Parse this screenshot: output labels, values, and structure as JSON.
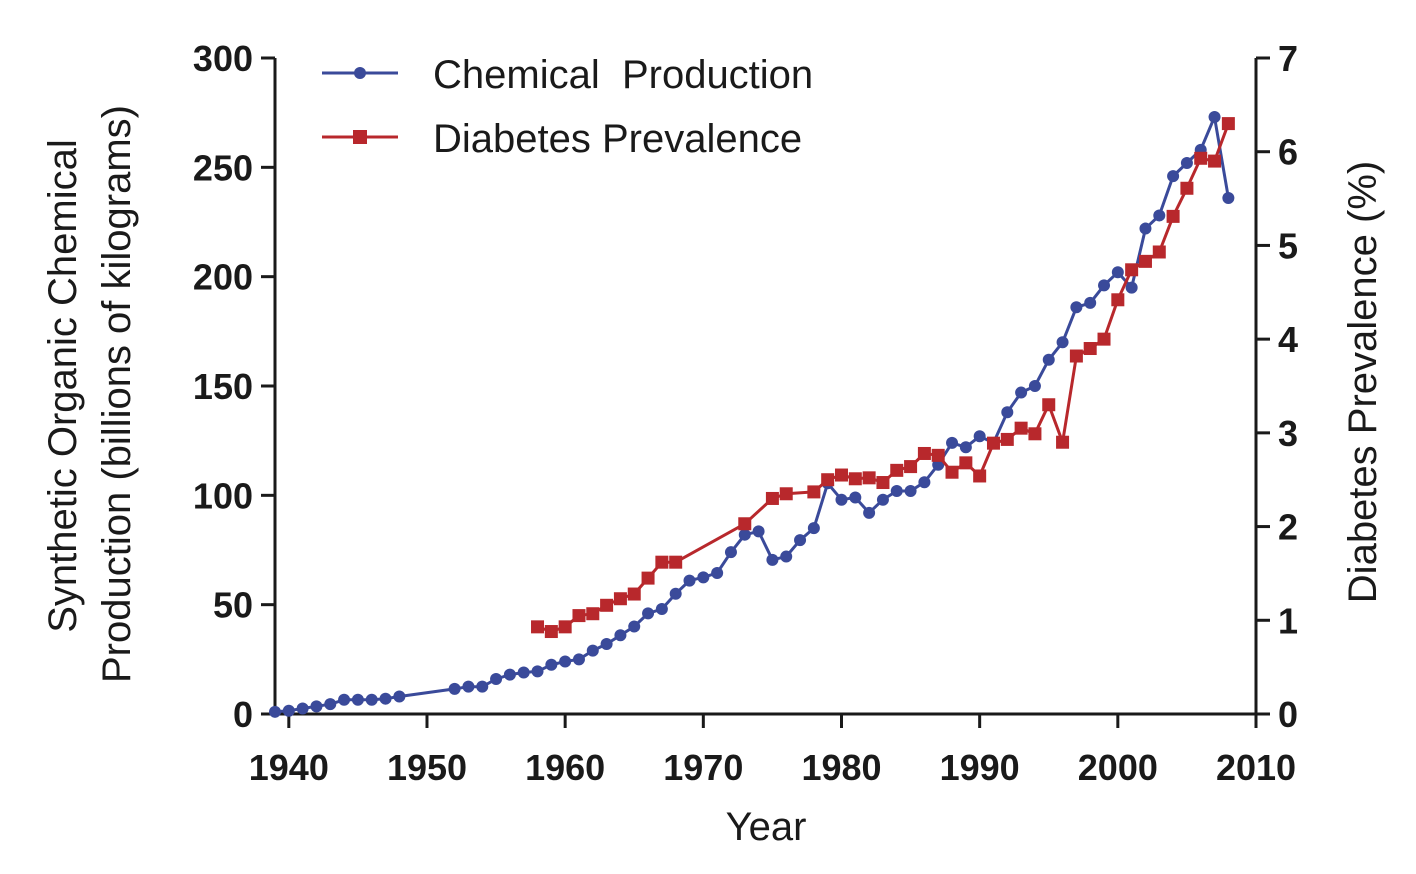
{
  "chart_data": {
    "type": "line",
    "xlabel": "Year",
    "ylabel_left_line1": "Synthetic  Organic  Chemical",
    "ylabel_left_line2": "Production (billions of kilograms)",
    "ylabel_right": "Diabetes  Prevalence  (%)",
    "xlim": [
      1939,
      2010
    ],
    "ylim_left": [
      0,
      300
    ],
    "ylim_right": [
      0,
      7
    ],
    "x_ticks": [
      1940,
      1950,
      1960,
      1970,
      1980,
      1990,
      2000,
      2010
    ],
    "y_ticks_left": [
      0,
      50,
      100,
      150,
      200,
      250,
      300
    ],
    "y_ticks_right": [
      0,
      1,
      2,
      3,
      4,
      5,
      6,
      7
    ],
    "grid": false,
    "legend_position": "top-left",
    "series": [
      {
        "name": "Chemical  Production",
        "axis": "left",
        "marker": "circle",
        "color": "#3a4a9a",
        "x": [
          1939,
          1940,
          1941,
          1942,
          1943,
          1944,
          1945,
          1946,
          1947,
          1948,
          1952,
          1953,
          1954,
          1955,
          1956,
          1957,
          1958,
          1959,
          1960,
          1961,
          1962,
          1963,
          1964,
          1965,
          1966,
          1967,
          1968,
          1969,
          1970,
          1971,
          1972,
          1973,
          1974,
          1975,
          1976,
          1977,
          1978,
          1979,
          1980,
          1981,
          1982,
          1983,
          1984,
          1985,
          1986,
          1987,
          1988,
          1989,
          1990,
          1991,
          1992,
          1993,
          1994,
          1995,
          1996,
          1997,
          1998,
          1999,
          2000,
          2001,
          2002,
          2003,
          2004,
          2005,
          2006,
          2007,
          2008
        ],
        "y": [
          1,
          1.5,
          2.5,
          3.5,
          4.5,
          6.5,
          6.5,
          6.5,
          7,
          8,
          11.5,
          12.5,
          12.5,
          16,
          18,
          19,
          19.5,
          22.5,
          24,
          25,
          29,
          32,
          36,
          40,
          46,
          48,
          55,
          61,
          62.5,
          64.5,
          74,
          82,
          83.5,
          70.5,
          72,
          79.5,
          85,
          105.5,
          98,
          99,
          92,
          98,
          102,
          102,
          106,
          114,
          124,
          122,
          127,
          124,
          138,
          147,
          150,
          162,
          170,
          186,
          188,
          196,
          202,
          195,
          222,
          228,
          246,
          252,
          258,
          273,
          236
        ]
      },
      {
        "name": "Diabetes Prevalence",
        "axis": "right",
        "marker": "square",
        "color": "#b8282c",
        "x": [
          1958,
          1959,
          1960,
          1961,
          1962,
          1963,
          1964,
          1965,
          1966,
          1967,
          1968,
          1973,
          1975,
          1976,
          1978,
          1979,
          1980,
          1981,
          1982,
          1983,
          1984,
          1985,
          1986,
          1987,
          1988,
          1989,
          1990,
          1991,
          1992,
          1993,
          1994,
          1995,
          1996,
          1997,
          1998,
          1999,
          2000,
          2001,
          2002,
          2003,
          2004,
          2005,
          2006,
          2007,
          2008
        ],
        "y": [
          0.93,
          0.88,
          0.93,
          1.05,
          1.07,
          1.16,
          1.23,
          1.28,
          1.45,
          1.62,
          1.62,
          2.03,
          2.3,
          2.35,
          2.37,
          2.5,
          2.55,
          2.51,
          2.52,
          2.47,
          2.6,
          2.64,
          2.78,
          2.76,
          2.58,
          2.68,
          2.54,
          2.89,
          2.93,
          3.05,
          2.99,
          3.3,
          2.9,
          3.82,
          3.9,
          4.0,
          4.42,
          4.74,
          4.83,
          4.93,
          5.31,
          5.61,
          5.93,
          5.9,
          6.3
        ]
      }
    ]
  }
}
